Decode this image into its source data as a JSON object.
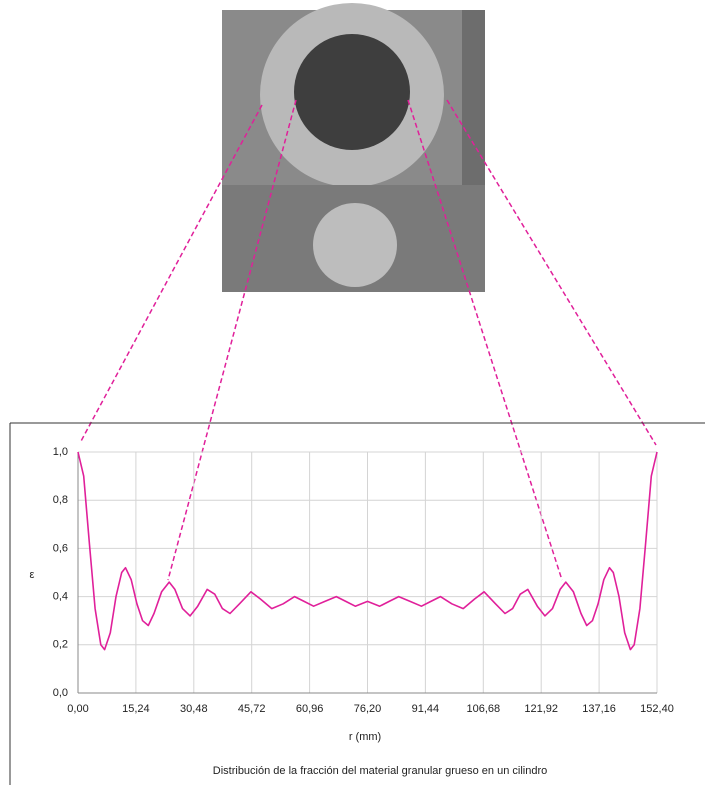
{
  "chart_data": {
    "type": "line",
    "caption": "Distribución de la fracción del material granular grueso en un cilindro",
    "x_label": "r (mm)",
    "y_label": "ε",
    "x": [
      0,
      1.5,
      3,
      4.5,
      6,
      7,
      8.5,
      10,
      11.5,
      12.5,
      14,
      15.5,
      17,
      18.5,
      20,
      22,
      24,
      25.5,
      27.5,
      29.5,
      31.5,
      34,
      36,
      38,
      40,
      42.5,
      45.5,
      48,
      51,
      54,
      57,
      59.5,
      62,
      65,
      68,
      70.5,
      73,
      76.2,
      79.4,
      81.9,
      84.4,
      87.4,
      90.4,
      92.9,
      95.4,
      98.4,
      101.4,
      104.4,
      106.9,
      109.9,
      112.4,
      114.4,
      116.4,
      118.4,
      120.9,
      122.9,
      124.9,
      126.9,
      128.4,
      130.4,
      132.4,
      133.9,
      135.4,
      136.9,
      138.4,
      139.9,
      140.9,
      142.4,
      143.9,
      145.4,
      146.4,
      147.9,
      149.4,
      150.9,
      152.4
    ],
    "series": [
      {
        "color": "#e0209a",
        "values": [
          1.0,
          0.9,
          0.62,
          0.35,
          0.2,
          0.18,
          0.25,
          0.4,
          0.5,
          0.52,
          0.47,
          0.37,
          0.3,
          0.28,
          0.33,
          0.42,
          0.46,
          0.43,
          0.35,
          0.32,
          0.36,
          0.43,
          0.41,
          0.35,
          0.33,
          0.37,
          0.42,
          0.39,
          0.35,
          0.37,
          0.4,
          0.38,
          0.36,
          0.38,
          0.4,
          0.38,
          0.36,
          0.38,
          0.36,
          0.38,
          0.4,
          0.38,
          0.36,
          0.38,
          0.4,
          0.37,
          0.35,
          0.39,
          0.42,
          0.37,
          0.33,
          0.35,
          0.41,
          0.43,
          0.36,
          0.32,
          0.35,
          0.43,
          0.46,
          0.42,
          0.33,
          0.28,
          0.3,
          0.37,
          0.47,
          0.52,
          0.5,
          0.4,
          0.25,
          0.18,
          0.2,
          0.35,
          0.62,
          0.9,
          1.0
        ]
      }
    ],
    "xlim": [
      0,
      152.4
    ],
    "xticks": [
      {
        "value": 0,
        "label": "0,00"
      },
      {
        "value": 15.24,
        "label": "15,24"
      },
      {
        "value": 30.48,
        "label": "30,48"
      },
      {
        "value": 45.72,
        "label": "45,72"
      },
      {
        "value": 60.96,
        "label": "60,96"
      },
      {
        "value": 76.2,
        "label": "76,20"
      },
      {
        "value": 91.44,
        "label": "91,44"
      },
      {
        "value": 106.68,
        "label": "106,68"
      },
      {
        "value": 121.92,
        "label": "121,92"
      },
      {
        "value": 137.16,
        "label": "137,16"
      },
      {
        "value": 152.4,
        "label": "152,40"
      }
    ],
    "ylim": [
      0,
      1
    ],
    "yticks": [
      {
        "value": 0,
        "label": "0,0"
      },
      {
        "value": 0.2,
        "label": "0,2"
      },
      {
        "value": 0.4,
        "label": "0,4"
      },
      {
        "value": 0.6,
        "label": "0,6"
      },
      {
        "value": 0.8,
        "label": "0,8"
      },
      {
        "value": 1,
        "label": "1,0"
      }
    ],
    "grid": true
  }
}
